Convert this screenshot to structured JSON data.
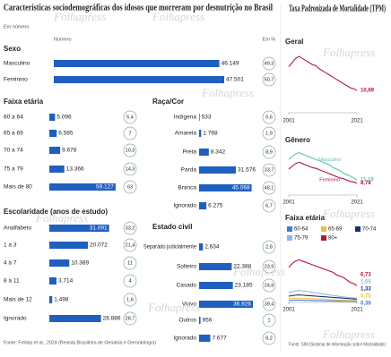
{
  "title": "Características sociodemográficas dos idosos que morreram por desnutrição no Brasil",
  "subtitle": "Em número",
  "column_headers": [
    "Número",
    "Em %"
  ],
  "source_left": "Fonte: Freitas et al., 2024 (Revista Brasileira de Geriatria e Gerontologia)",
  "panel_title": "Taxa Padronizada de Mortalidade (TPM)",
  "source_right": "Fonte: SIM (Sistema de Informação sobre Mortalidade)",
  "watermark": "Folhapress",
  "chart_data": [
    {
      "type": "hbar",
      "title": "Sexo",
      "color": "#1f5fbf",
      "xlim": [
        0,
        50000
      ],
      "categories": [
        "Masculino",
        "Feminino"
      ],
      "values": [
        46149,
        47501
      ],
      "value_labels": [
        "46.149",
        "47.501"
      ],
      "percent": [
        49.3,
        50.7
      ],
      "percent_labels": [
        "49,3",
        "50,7"
      ]
    },
    {
      "type": "hbar",
      "title": "Faixa etária",
      "color": "#1f5fbf",
      "xlim": [
        0,
        60000
      ],
      "categories": [
        "60 a 64",
        "65 a 69",
        "70 a 74",
        "75 a 79",
        "Mais de 80"
      ],
      "values": [
        5096,
        6585,
        9678,
        13366,
        59127
      ],
      "value_labels": [
        "5.096",
        "6.585",
        "9.678",
        "13.366",
        "59.127"
      ],
      "percent": [
        5.4,
        7,
        10.3,
        14.3,
        63
      ],
      "percent_labels": [
        "5,4",
        "7",
        "10,3",
        "14,3",
        "63"
      ]
    },
    {
      "type": "hbar",
      "title": "Escolaridade (anos de estudo)",
      "color": "#1f5fbf",
      "xlim": [
        0,
        35000
      ],
      "categories": [
        "Analfabeto",
        "1 a 3",
        "4 a 7",
        "8 a 11",
        "Mais de 12",
        "Ignorado"
      ],
      "values": [
        31091,
        20072,
        10389,
        3714,
        1498,
        26886
      ],
      "value_labels": [
        "31.091",
        "20.072",
        "10.389",
        "3.714",
        "1.498",
        "26.886"
      ],
      "percent": [
        33.2,
        21.4,
        11,
        4,
        1.6,
        28.7
      ],
      "percent_labels": [
        "33,2",
        "21,4",
        "11",
        "4",
        "1,6",
        "28,7"
      ]
    },
    {
      "type": "hbar",
      "title": "Raça/Cor",
      "color": "#1f5fbf",
      "xlim": [
        0,
        50000
      ],
      "categories": [
        "Indígena",
        "Amarela",
        "Preta",
        "Parda",
        "Branca",
        "Ignorado"
      ],
      "values": [
        533,
        1768,
        8342,
        31576,
        45068,
        6275
      ],
      "value_labels": [
        "533",
        "1.768",
        "8.342",
        "31.576",
        "45.068",
        "6.275"
      ],
      "percent": [
        0.6,
        1.9,
        8.9,
        33.7,
        48.1,
        6.7
      ],
      "percent_labels": [
        "0,6",
        "1,9",
        "8,9",
        "33,7",
        "48,1",
        "6,7"
      ]
    },
    {
      "type": "hbar",
      "title": "Estado civil",
      "color": "#1f5fbf",
      "xlim": [
        0,
        40000
      ],
      "categories": [
        "Separado judicialmente",
        "Solteiro",
        "Casado",
        "Viúvo",
        "Outros",
        "Ignorado"
      ],
      "values": [
        2634,
        22388,
        23185,
        36926,
        956,
        7677
      ],
      "value_labels": [
        "2.634",
        "22.388",
        "23.185",
        "36.926",
        "956",
        "7.677"
      ],
      "percent": [
        2.8,
        23.9,
        24.8,
        39.4,
        1,
        8.2
      ],
      "percent_labels": [
        "2,8",
        "23,9",
        "24,8",
        "39,4",
        "1",
        "8,2"
      ]
    },
    {
      "type": "line",
      "title": "Geral",
      "xlim": [
        2001,
        2021
      ],
      "ylim": [
        0,
        30
      ],
      "xticks": [
        2001,
        2021
      ],
      "x": [
        2001,
        2002,
        2003,
        2004,
        2005,
        2006,
        2007,
        2008,
        2009,
        2010,
        2011,
        2012,
        2013,
        2014,
        2015,
        2016,
        2017,
        2018,
        2019,
        2020,
        2021
      ],
      "series": [
        {
          "name": "Geral",
          "color": "#b0183a",
          "values": [
            22,
            24,
            26,
            27,
            26,
            25,
            24,
            23,
            22.5,
            21,
            20,
            19,
            18,
            17,
            16,
            15,
            14,
            13,
            12,
            11.5,
            10.69
          ],
          "value_labels": [
            null,
            null,
            null,
            null,
            null,
            null,
            null,
            null,
            null,
            null,
            null,
            null,
            null,
            null,
            null,
            null,
            null,
            null,
            null,
            null,
            "10,69"
          ]
        }
      ]
    },
    {
      "type": "line",
      "title": "Gênero",
      "xlim": [
        2001,
        2021
      ],
      "ylim": [
        0,
        34
      ],
      "xticks": [
        2001,
        2021
      ],
      "x": [
        2001,
        2002,
        2003,
        2004,
        2005,
        2006,
        2007,
        2008,
        2009,
        2010,
        2011,
        2012,
        2013,
        2014,
        2015,
        2016,
        2017,
        2018,
        2019,
        2020,
        2021
      ],
      "series": [
        {
          "name": "Masculino",
          "color": "#5fc4b4",
          "values": [
            26,
            28,
            30,
            31,
            30,
            29,
            28,
            27,
            26,
            25,
            24,
            23,
            22,
            20,
            19,
            18,
            16,
            15,
            14,
            12.5,
            11.19
          ],
          "value_labels": [
            null,
            null,
            null,
            null,
            null,
            null,
            null,
            null,
            null,
            null,
            null,
            null,
            null,
            null,
            null,
            null,
            null,
            null,
            null,
            null,
            "11,19"
          ]
        },
        {
          "name": "Feminino",
          "color": "#b0183a",
          "values": [
            19,
            21,
            23,
            24,
            23,
            22,
            21,
            20,
            19.5,
            18.5,
            17.5,
            16.5,
            15.5,
            14.5,
            13.5,
            12.5,
            12,
            11,
            10,
            9.5,
            8.78
          ],
          "value_labels": [
            null,
            null,
            null,
            null,
            null,
            null,
            null,
            null,
            null,
            null,
            null,
            null,
            null,
            null,
            null,
            null,
            null,
            null,
            null,
            null,
            "8,78"
          ]
        }
      ]
    },
    {
      "type": "line",
      "title": "Faixa etária",
      "xlim": [
        2001,
        2021
      ],
      "ylim": [
        0,
        20
      ],
      "xticks": [
        2001,
        2021
      ],
      "x": [
        2001,
        2002,
        2003,
        2004,
        2005,
        2006,
        2007,
        2008,
        2009,
        2010,
        2011,
        2012,
        2013,
        2014,
        2015,
        2016,
        2017,
        2018,
        2019,
        2020,
        2021
      ],
      "series": [
        {
          "name": "60-64",
          "color": "#3a7fd5",
          "values": [
            0.8,
            0.85,
            0.9,
            0.9,
            0.85,
            0.8,
            0.8,
            0.75,
            0.7,
            0.7,
            0.65,
            0.6,
            0.6,
            0.55,
            0.5,
            0.5,
            0.45,
            0.45,
            0.4,
            0.4,
            0.38
          ],
          "value_labels": [
            null,
            null,
            null,
            null,
            null,
            null,
            null,
            null,
            null,
            null,
            null,
            null,
            null,
            null,
            null,
            null,
            null,
            null,
            null,
            null,
            "0,38"
          ]
        },
        {
          "name": "65-69",
          "color": "#e8c23a",
          "values": [
            1.5,
            1.6,
            1.7,
            1.7,
            1.6,
            1.55,
            1.5,
            1.45,
            1.4,
            1.35,
            1.3,
            1.2,
            1.15,
            1.1,
            1,
            0.95,
            0.9,
            0.85,
            0.8,
            0.78,
            0.75
          ],
          "value_labels": [
            null,
            null,
            null,
            null,
            null,
            null,
            null,
            null,
            null,
            null,
            null,
            null,
            null,
            null,
            null,
            null,
            null,
            null,
            null,
            null,
            "0,75"
          ]
        },
        {
          "name": "70-74",
          "color": "#1b2f6b",
          "values": [
            2.5,
            2.7,
            2.9,
            3,
            2.9,
            2.8,
            2.7,
            2.6,
            2.5,
            2.4,
            2.3,
            2.2,
            2.1,
            2,
            1.9,
            1.8,
            1.7,
            1.6,
            1.5,
            1.4,
            1.33
          ],
          "value_labels": [
            null,
            null,
            null,
            null,
            null,
            null,
            null,
            null,
            null,
            null,
            null,
            null,
            null,
            null,
            null,
            null,
            null,
            null,
            null,
            null,
            "1,33"
          ]
        },
        {
          "name": "75-79",
          "color": "#8fb8e8",
          "values": [
            4,
            4.3,
            4.6,
            4.8,
            4.6,
            4.4,
            4.2,
            4,
            3.8,
            3.6,
            3.4,
            3.2,
            3,
            2.8,
            2.6,
            2.4,
            2.2,
            2.05,
            1.9,
            1.8,
            1.69
          ],
          "value_labels": [
            null,
            null,
            null,
            null,
            null,
            null,
            null,
            null,
            null,
            null,
            null,
            null,
            null,
            null,
            null,
            null,
            null,
            null,
            null,
            null,
            "1,69"
          ]
        },
        {
          "name": "80+",
          "color": "#b0183a",
          "values": [
            14,
            15.5,
            16.5,
            17,
            16.5,
            16,
            15.5,
            15,
            14.5,
            14,
            13.5,
            13,
            12.5,
            12,
            11,
            10.5,
            10,
            9,
            8,
            7.5,
            6.73
          ],
          "value_labels": [
            null,
            null,
            null,
            null,
            null,
            null,
            null,
            null,
            null,
            null,
            null,
            null,
            null,
            null,
            null,
            null,
            null,
            null,
            null,
            null,
            "6,73"
          ]
        }
      ]
    }
  ]
}
